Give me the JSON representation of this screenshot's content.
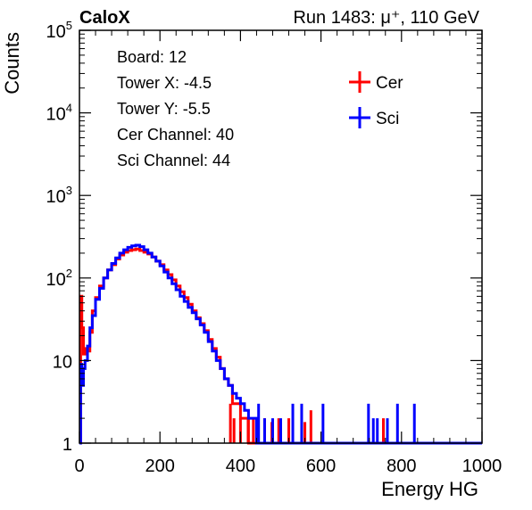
{
  "header": {
    "brand": "CaloX",
    "run": "Run 1483:   μ⁺, 110 GeV"
  },
  "info_box": {
    "lines": [
      "Board: 12",
      "Tower X: -4.5",
      "Tower Y: -5.5",
      "Cer Channel: 40",
      "Sci Channel: 44"
    ]
  },
  "chart_data": {
    "type": "histogram",
    "title": "",
    "xlabel": "Energy HG",
    "ylabel": "Counts",
    "xlim": [
      0,
      1000
    ],
    "ylim": [
      1,
      100000
    ],
    "yscale": "log",
    "x_ticks": [
      {
        "v": 0,
        "label": "0"
      },
      {
        "v": 200,
        "label": "200"
      },
      {
        "v": 400,
        "label": "400"
      },
      {
        "v": 600,
        "label": "600"
      },
      {
        "v": 800,
        "label": "800"
      },
      {
        "v": 1000,
        "label": "1000"
      }
    ],
    "y_ticks": [
      {
        "v": 1,
        "base": "1",
        "exp": ""
      },
      {
        "v": 10,
        "base": "10",
        "exp": ""
      },
      {
        "v": 100,
        "base": "10",
        "exp": "2"
      },
      {
        "v": 1000,
        "base": "10",
        "exp": "3"
      },
      {
        "v": 10000,
        "base": "10",
        "exp": "4"
      },
      {
        "v": 100000,
        "base": "10",
        "exp": "5"
      }
    ],
    "legend_position": "top-right",
    "series": [
      {
        "name": "Cer",
        "color": "#ff0000",
        "points": [
          [
            0,
            1
          ],
          [
            3,
            60
          ],
          [
            6,
            25
          ],
          [
            10,
            12
          ],
          [
            14,
            14
          ],
          [
            20,
            13
          ],
          [
            26,
            22
          ],
          [
            32,
            40
          ],
          [
            40,
            58
          ],
          [
            50,
            80
          ],
          [
            60,
            100
          ],
          [
            70,
            125
          ],
          [
            80,
            145
          ],
          [
            90,
            170
          ],
          [
            100,
            190
          ],
          [
            110,
            205
          ],
          [
            120,
            215
          ],
          [
            130,
            220
          ],
          [
            140,
            225
          ],
          [
            150,
            215
          ],
          [
            160,
            205
          ],
          [
            170,
            195
          ],
          [
            180,
            180
          ],
          [
            190,
            160
          ],
          [
            200,
            145
          ],
          [
            210,
            125
          ],
          [
            220,
            110
          ],
          [
            230,
            95
          ],
          [
            240,
            80
          ],
          [
            250,
            68
          ],
          [
            260,
            58
          ],
          [
            270,
            48
          ],
          [
            280,
            40
          ],
          [
            290,
            33
          ],
          [
            300,
            28
          ],
          [
            310,
            23
          ],
          [
            320,
            18
          ],
          [
            330,
            14
          ],
          [
            340,
            11
          ],
          [
            350,
            8
          ],
          [
            360,
            6
          ],
          [
            370,
            5
          ],
          [
            380,
            3
          ],
          [
            390,
            3
          ],
          [
            400,
            2
          ],
          [
            410,
            2
          ],
          [
            420,
            1
          ],
          [
            1000,
            1
          ]
        ],
        "spikes": [
          [
            375,
            3
          ],
          [
            384,
            2
          ],
          [
            400,
            2
          ],
          [
            419,
            2
          ],
          [
            432,
            2
          ],
          [
            460,
            2
          ],
          [
            478,
            1.8
          ],
          [
            495,
            2
          ],
          [
            520,
            2
          ],
          [
            560,
            1.8
          ],
          [
            575,
            2.5
          ],
          [
            755,
            2
          ]
        ]
      },
      {
        "name": "Sci",
        "color": "#0000ff",
        "points": [
          [
            0,
            1
          ],
          [
            3,
            9
          ],
          [
            6,
            5
          ],
          [
            10,
            8
          ],
          [
            14,
            10
          ],
          [
            20,
            15
          ],
          [
            26,
            25
          ],
          [
            32,
            35
          ],
          [
            40,
            55
          ],
          [
            50,
            75
          ],
          [
            60,
            100
          ],
          [
            70,
            125
          ],
          [
            80,
            150
          ],
          [
            90,
            175
          ],
          [
            100,
            200
          ],
          [
            110,
            220
          ],
          [
            120,
            235
          ],
          [
            130,
            245
          ],
          [
            140,
            250
          ],
          [
            150,
            240
          ],
          [
            160,
            220
          ],
          [
            170,
            200
          ],
          [
            180,
            180
          ],
          [
            190,
            160
          ],
          [
            200,
            140
          ],
          [
            210,
            118
          ],
          [
            220,
            100
          ],
          [
            230,
            85
          ],
          [
            240,
            72
          ],
          [
            250,
            60
          ],
          [
            260,
            52
          ],
          [
            270,
            44
          ],
          [
            280,
            38
          ],
          [
            290,
            32
          ],
          [
            300,
            27
          ],
          [
            310,
            22
          ],
          [
            320,
            17
          ],
          [
            330,
            13
          ],
          [
            340,
            10
          ],
          [
            350,
            8
          ],
          [
            360,
            6
          ],
          [
            370,
            5
          ],
          [
            380,
            4
          ],
          [
            390,
            3.5
          ],
          [
            400,
            3
          ],
          [
            410,
            2.5
          ],
          [
            420,
            2
          ],
          [
            430,
            2
          ],
          [
            440,
            1
          ],
          [
            1000,
            1
          ]
        ],
        "spikes": [
          [
            445,
            3
          ],
          [
            460,
            2
          ],
          [
            480,
            2
          ],
          [
            500,
            2
          ],
          [
            530,
            3
          ],
          [
            552,
            3
          ],
          [
            605,
            3
          ],
          [
            718,
            3
          ],
          [
            730,
            2
          ],
          [
            740,
            2
          ],
          [
            765,
            2
          ],
          [
            790,
            3
          ],
          [
            832,
            3
          ]
        ]
      }
    ]
  }
}
